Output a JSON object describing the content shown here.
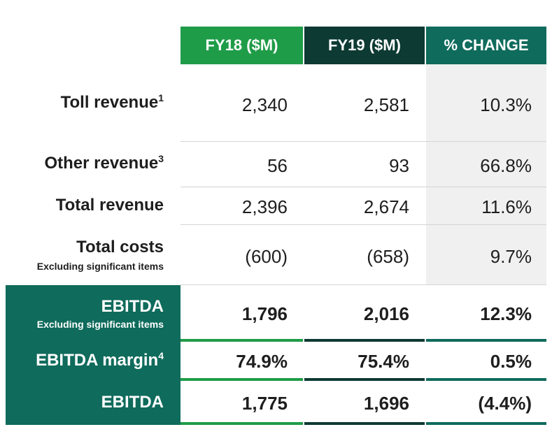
{
  "headers": {
    "fy18": "FY18 ($M)",
    "fy19": "FY19 ($M)",
    "change": "% CHANGE"
  },
  "rows": [
    {
      "label": "Toll revenue",
      "sup": "1",
      "fy18": "2,340",
      "fy19": "2,581",
      "change": "10.3%"
    },
    {
      "label": "Other revenue",
      "sup": "3",
      "fy18": "56",
      "fy19": "93",
      "change": "66.8%"
    },
    {
      "label": "Total revenue",
      "fy18": "2,396",
      "fy19": "2,674",
      "change": "11.6%"
    },
    {
      "label": "Total costs",
      "sub": "Excluding significant items",
      "fy18": "(600)",
      "fy19": "(658)",
      "change": "9.7%"
    },
    {
      "label": "EBITDA",
      "sub": "Excluding significant items",
      "fy18": "1,796",
      "fy19": "2,016",
      "change": "12.3%"
    },
    {
      "label": "EBITDA margin",
      "sup": "4",
      "fy18": "74.9%",
      "fy19": "75.4%",
      "change": "0.5%"
    },
    {
      "label": "EBITDA",
      "fy18": "1,775",
      "fy19": "1,696",
      "change": "(4.4%)"
    }
  ],
  "colors": {
    "fy18": "#1f9c48",
    "fy19": "#0d3a33",
    "change": "#0f6b5c",
    "panel": "#0f6b5c",
    "pct_background": "#f0f0f0"
  }
}
